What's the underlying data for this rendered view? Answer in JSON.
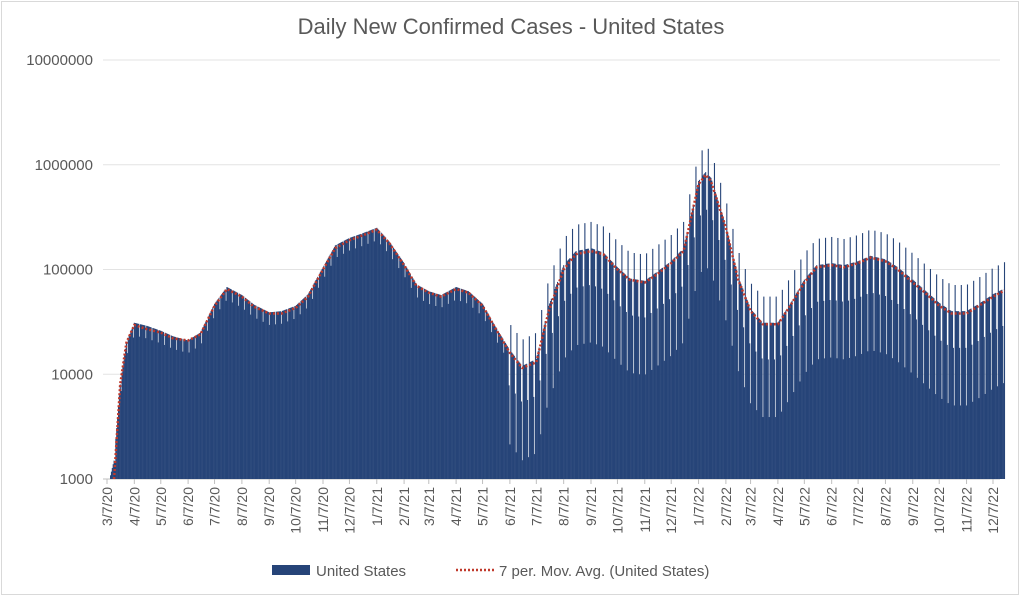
{
  "chart_data": {
    "type": "bar",
    "title": "Daily New Confirmed Cases - United States",
    "xlabel": "",
    "ylabel": "",
    "y_scale": "log",
    "ylim": [
      1000,
      10000000
    ],
    "y_ticks": [
      "1000",
      "10000",
      "100000",
      "1000000",
      "10000000"
    ],
    "x_ticks": [
      "3/7/20",
      "4/7/20",
      "5/7/20",
      "6/7/20",
      "7/7/20",
      "8/7/20",
      "9/7/20",
      "10/7/20",
      "11/7/20",
      "12/7/20",
      "1/7/21",
      "2/7/21",
      "3/7/21",
      "4/7/21",
      "5/7/21",
      "6/7/21",
      "7/7/21",
      "8/7/21",
      "9/7/21",
      "10/7/21",
      "11/7/21",
      "12/7/21",
      "1/7/22",
      "2/7/22",
      "3/7/22",
      "4/7/22",
      "5/7/22",
      "6/7/22",
      "7/7/22",
      "8/7/22",
      "9/7/22",
      "10/7/22",
      "11/7/22",
      "12/7/22"
    ],
    "grid": true,
    "legend_position": "bottom",
    "colors": {
      "bars": "#264478",
      "moving_average": "#c0392b"
    },
    "series": [
      {
        "name": "United States",
        "type": "bar",
        "x": [
          "2020-03-10",
          "2020-03-15",
          "2020-03-22",
          "2020-03-29",
          "2020-04-07",
          "2020-04-21",
          "2020-05-07",
          "2020-05-21",
          "2020-06-07",
          "2020-06-21",
          "2020-07-07",
          "2020-07-21",
          "2020-08-07",
          "2020-08-21",
          "2020-09-07",
          "2020-09-21",
          "2020-10-07",
          "2020-10-21",
          "2020-11-07",
          "2020-11-21",
          "2020-12-07",
          "2020-12-21",
          "2021-01-07",
          "2021-01-21",
          "2021-02-07",
          "2021-02-21",
          "2021-03-07",
          "2021-03-21",
          "2021-04-07",
          "2021-04-21",
          "2021-05-07",
          "2021-05-21",
          "2021-06-07",
          "2021-06-21",
          "2021-07-07",
          "2021-07-21",
          "2021-08-07",
          "2021-08-21",
          "2021-09-07",
          "2021-09-21",
          "2021-10-07",
          "2021-10-21",
          "2021-11-07",
          "2021-11-21",
          "2021-12-07",
          "2021-12-21",
          "2022-01-07",
          "2022-01-15",
          "2022-01-21",
          "2022-02-07",
          "2022-02-21",
          "2022-03-07",
          "2022-03-21",
          "2022-04-07",
          "2022-04-21",
          "2022-05-07",
          "2022-05-21",
          "2022-06-07",
          "2022-06-21",
          "2022-07-07",
          "2022-07-21",
          "2022-08-07",
          "2022-08-21",
          "2022-09-07",
          "2022-09-21",
          "2022-10-07",
          "2022-10-21",
          "2022-11-07",
          "2022-11-21",
          "2022-12-07",
          "2022-12-20"
        ],
        "values": [
          1000,
          1500,
          8000,
          20000,
          31000,
          29000,
          26000,
          23000,
          21000,
          25000,
          47000,
          68000,
          57000,
          46000,
          39000,
          40000,
          45000,
          58000,
          105000,
          170000,
          200000,
          220000,
          250000,
          185000,
          115000,
          72000,
          62000,
          57000,
          68000,
          62000,
          47000,
          29000,
          17000,
          12000,
          14000,
          45000,
          110000,
          150000,
          160000,
          145000,
          105000,
          82000,
          78000,
          95000,
          120000,
          160000,
          700000,
          850000,
          750000,
          260000,
          85000,
          42000,
          31000,
          31000,
          47000,
          80000,
          110000,
          115000,
          110000,
          120000,
          135000,
          125000,
          105000,
          80000,
          63000,
          48000,
          40000,
          40000,
          47000,
          58000,
          66000
        ]
      },
      {
        "name": "7 per. Mov. Avg. (United States)",
        "type": "line",
        "x": [
          "2020-03-15",
          "2020-03-22",
          "2020-03-29",
          "2020-04-07",
          "2020-04-21",
          "2020-05-07",
          "2020-05-21",
          "2020-06-07",
          "2020-06-21",
          "2020-07-07",
          "2020-07-21",
          "2020-08-07",
          "2020-08-21",
          "2020-09-07",
          "2020-09-21",
          "2020-10-07",
          "2020-10-21",
          "2020-11-07",
          "2020-11-21",
          "2020-12-07",
          "2020-12-21",
          "2021-01-07",
          "2021-01-21",
          "2021-02-07",
          "2021-02-21",
          "2021-03-07",
          "2021-03-21",
          "2021-04-07",
          "2021-04-21",
          "2021-05-07",
          "2021-05-21",
          "2021-06-07",
          "2021-06-21",
          "2021-07-07",
          "2021-07-21",
          "2021-08-07",
          "2021-08-21",
          "2021-09-07",
          "2021-09-21",
          "2021-10-07",
          "2021-10-21",
          "2021-11-07",
          "2021-11-21",
          "2021-12-07",
          "2021-12-21",
          "2022-01-07",
          "2022-01-15",
          "2022-01-21",
          "2022-02-07",
          "2022-02-21",
          "2022-03-07",
          "2022-03-21",
          "2022-04-07",
          "2022-04-21",
          "2022-05-07",
          "2022-05-21",
          "2022-06-07",
          "2022-06-21",
          "2022-07-07",
          "2022-07-21",
          "2022-08-07",
          "2022-08-21",
          "2022-09-07",
          "2022-09-21",
          "2022-10-07",
          "2022-10-21",
          "2022-11-07",
          "2022-11-21",
          "2022-12-07",
          "2022-12-20"
        ],
        "values": [
          1000,
          8000,
          20000,
          29500,
          27000,
          25000,
          22000,
          21000,
          24000,
          45000,
          65000,
          55000,
          44000,
          38000,
          38000,
          43000,
          55000,
          100000,
          160000,
          190000,
          210000,
          240000,
          180000,
          110000,
          70000,
          60000,
          55000,
          65000,
          60000,
          45000,
          28000,
          16000,
          11500,
          13000,
          40000,
          100000,
          140000,
          150000,
          140000,
          100000,
          80000,
          75000,
          90000,
          115000,
          150000,
          650000,
          800000,
          700000,
          250000,
          80000,
          40000,
          30000,
          30000,
          45000,
          75000,
          105000,
          110000,
          105000,
          115000,
          130000,
          120000,
          100000,
          75000,
          60000,
          45000,
          38000,
          38000,
          45000,
          55000,
          63000
        ]
      }
    ]
  }
}
